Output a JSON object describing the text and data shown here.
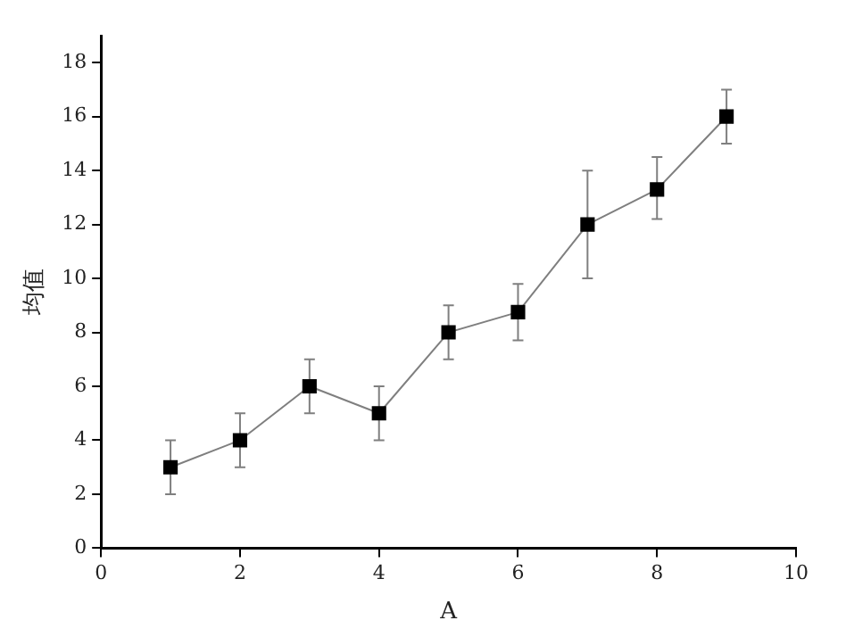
{
  "chart_data": {
    "type": "line",
    "xlabel": "A",
    "ylabel": "均值",
    "x": [
      1,
      2,
      3,
      4,
      5,
      6,
      7,
      8,
      9
    ],
    "series": [
      {
        "color": "#000000",
        "values": [
          3,
          4,
          6,
          5,
          8,
          8.75,
          12,
          13.3,
          16
        ],
        "errors": [
          1,
          1,
          1,
          1,
          1,
          [
            7.7,
            9.8
          ],
          2,
          [
            12.2,
            14.5
          ],
          1
        ]
      }
    ],
    "xlim": [
      0,
      10
    ],
    "xticks": [
      0,
      2,
      4,
      6,
      8,
      10
    ],
    "ylim": [
      0,
      19
    ],
    "yticks": [
      0,
      2,
      4,
      6,
      8,
      10,
      12,
      14,
      16,
      18
    ],
    "grid": false,
    "legend": false,
    "marker": "square",
    "line_style": "solid"
  }
}
